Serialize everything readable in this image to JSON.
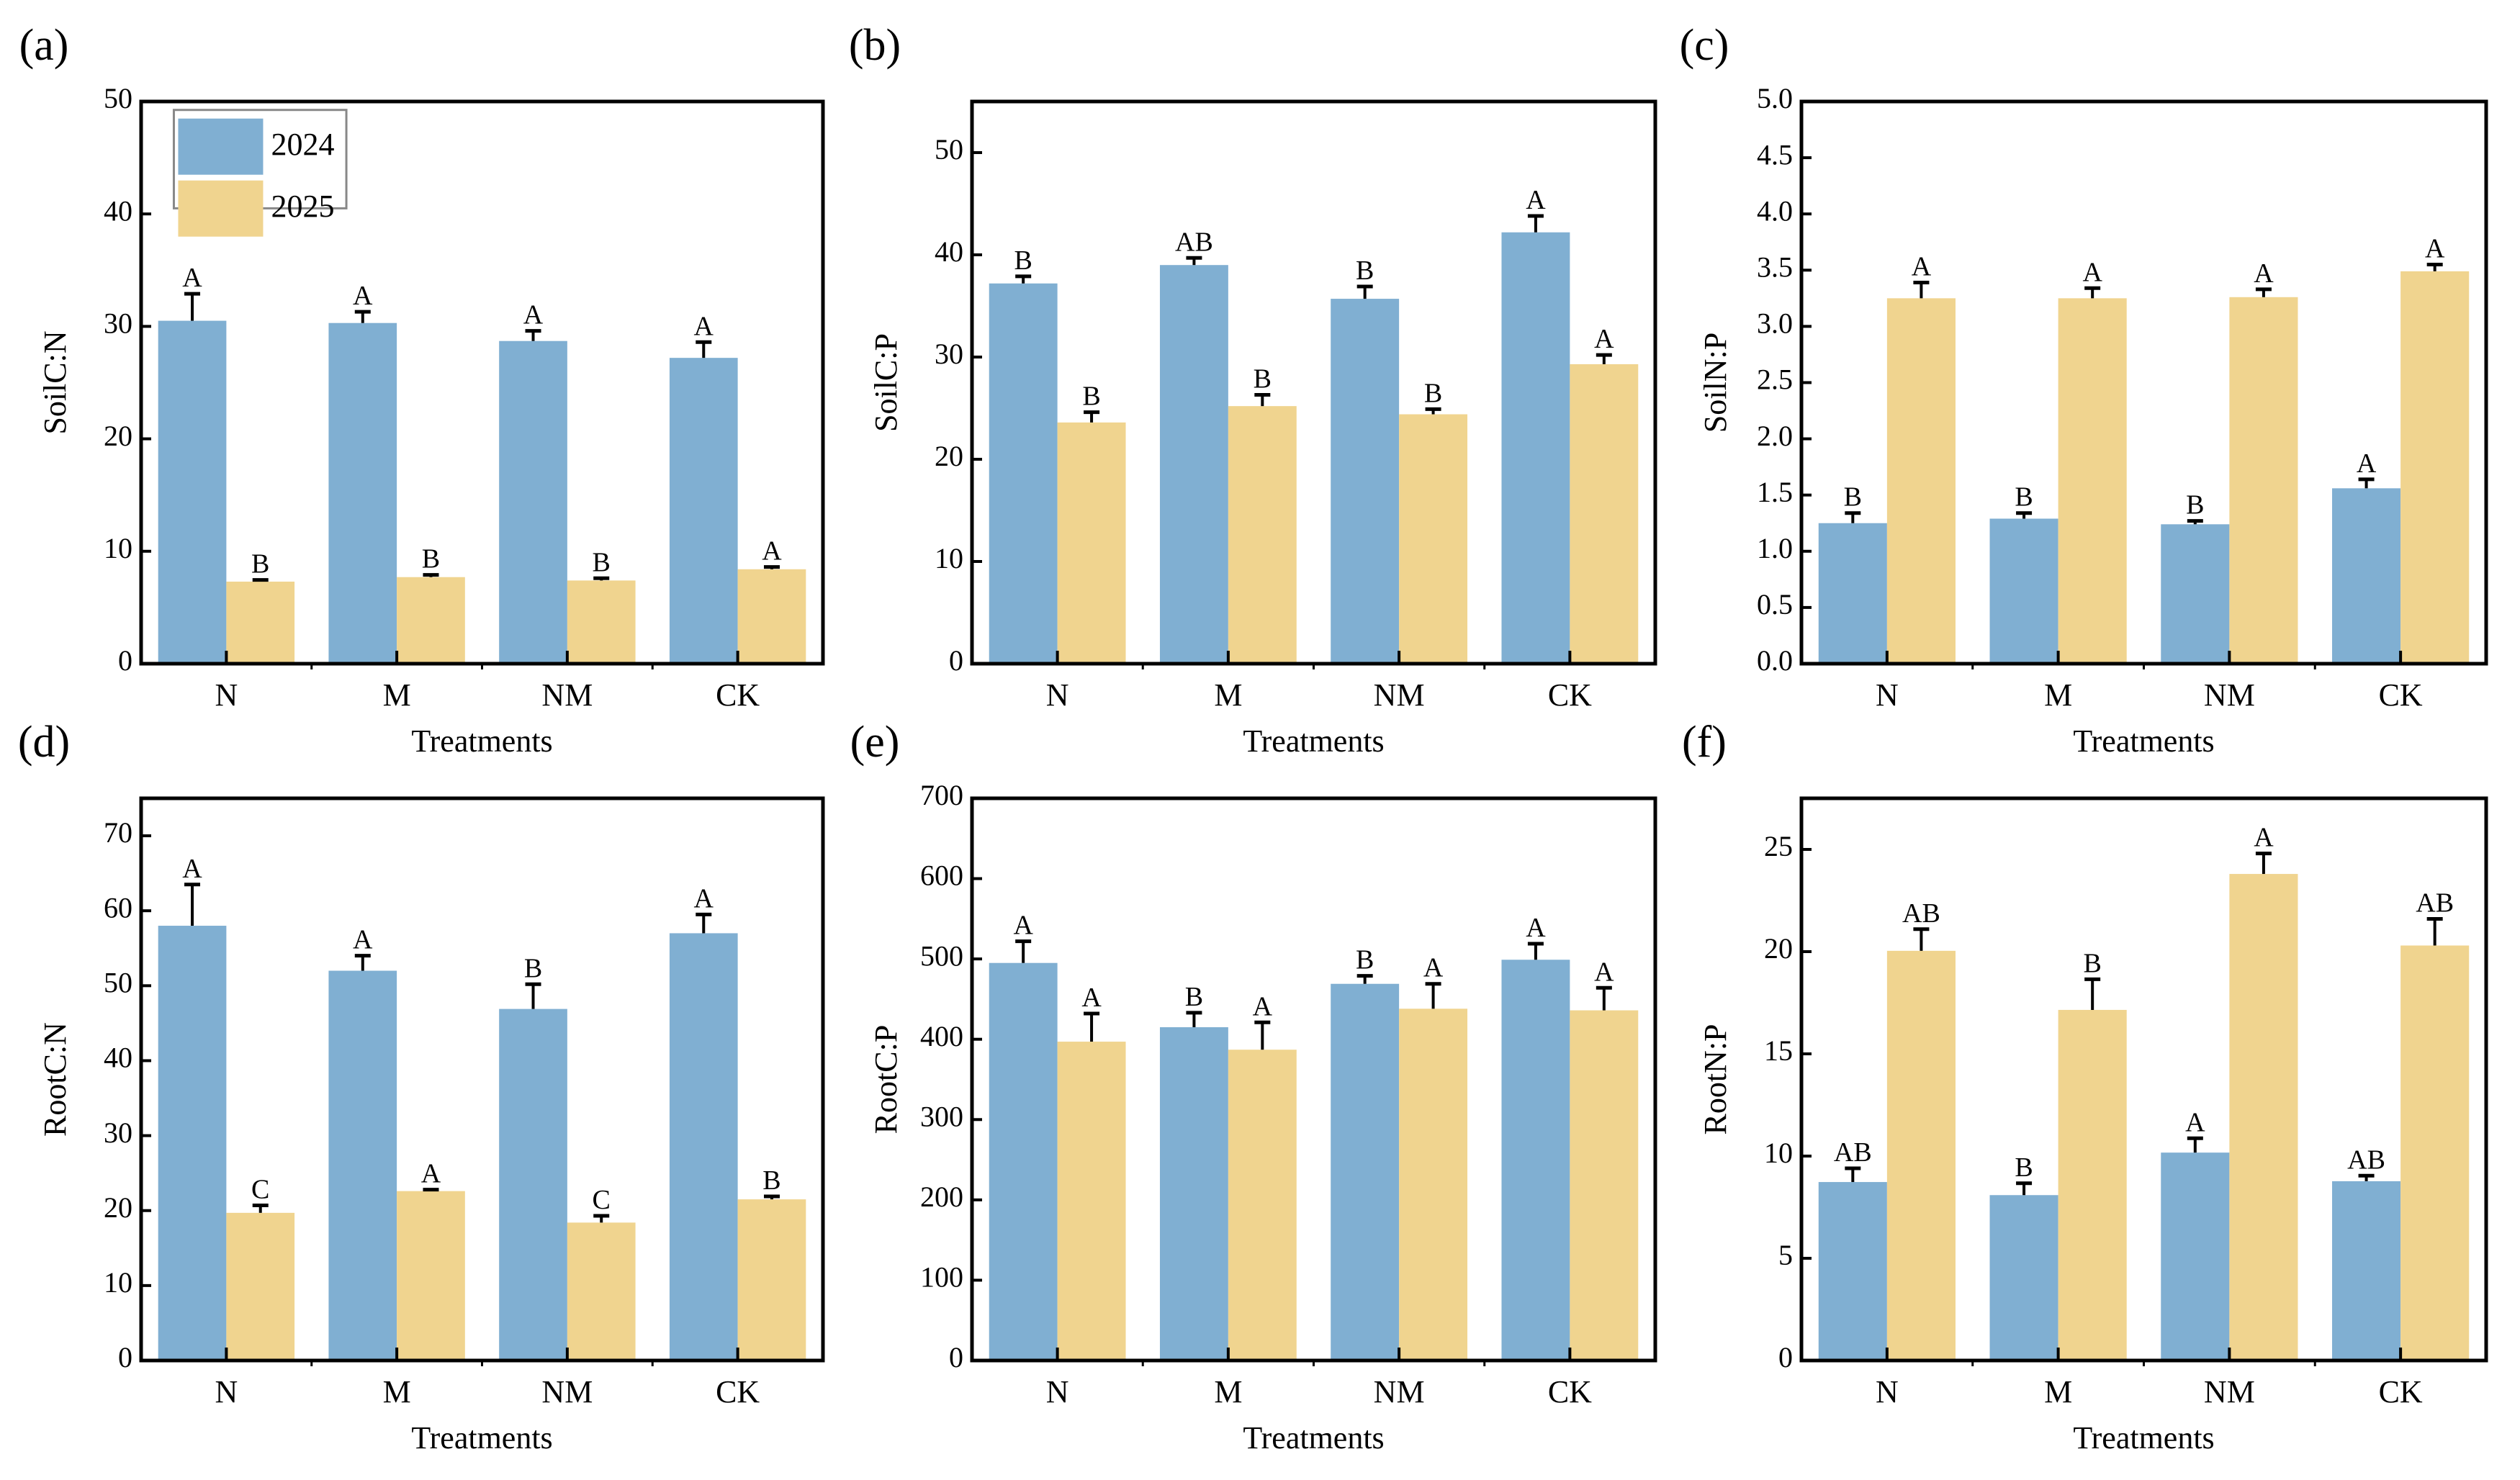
{
  "colors": {
    "2024": "#80AFD2",
    "2025": "#F0D48F"
  },
  "legend": [
    "2024",
    "2025"
  ],
  "chart_data": [
    {
      "panel": "(a)",
      "type": "bar",
      "ylabel": "SoilC:N",
      "xlabel": "Treatments",
      "categories": [
        "N",
        "M",
        "NM",
        "CK"
      ],
      "ylim": [
        0,
        50
      ],
      "yticks": [
        "0",
        "10",
        "20",
        "30",
        "40",
        "50"
      ],
      "legend_position": "top-left",
      "series": [
        {
          "name": "2024",
          "values": [
            30.5,
            30.3,
            28.7,
            27.2
          ],
          "errors": [
            2.4,
            1.0,
            0.9,
            1.4
          ],
          "letters": [
            "A",
            "A",
            "A",
            "A"
          ]
        },
        {
          "name": "2025",
          "values": [
            7.3,
            7.7,
            7.4,
            8.4
          ],
          "errors": [
            0.15,
            0.2,
            0.2,
            0.2
          ],
          "letters": [
            "B",
            "B",
            "B",
            "A"
          ]
        }
      ]
    },
    {
      "panel": "(b)",
      "type": "bar",
      "ylabel": "SoilC:P",
      "xlabel": "Treatments",
      "categories": [
        "N",
        "M",
        "NM",
        "CK"
      ],
      "ylim": [
        0,
        55
      ],
      "yticks": [
        "0",
        "10",
        "20",
        "30",
        "40",
        "50"
      ],
      "series": [
        {
          "name": "2024",
          "values": [
            37.2,
            39.0,
            35.7,
            42.2
          ],
          "errors": [
            0.7,
            0.7,
            1.2,
            1.6
          ],
          "letters": [
            "B",
            "AB",
            "B",
            "A"
          ]
        },
        {
          "name": "2025",
          "values": [
            23.6,
            25.2,
            24.4,
            29.3
          ],
          "errors": [
            1.0,
            1.1,
            0.5,
            0.9
          ],
          "letters": [
            "B",
            "B",
            "B",
            "A"
          ]
        }
      ]
    },
    {
      "panel": "(c)",
      "type": "bar",
      "ylabel": "SoilN:P",
      "xlabel": "Treatments",
      "categories": [
        "N",
        "M",
        "NM",
        "CK"
      ],
      "ylim": [
        0,
        5
      ],
      "yticks": [
        "0.0",
        "0.5",
        "1.0",
        "1.5",
        "2.0",
        "2.5",
        "3.0",
        "3.5",
        "4.0",
        "4.5",
        "5.0"
      ],
      "series": [
        {
          "name": "2024",
          "values": [
            1.25,
            1.29,
            1.24,
            1.56
          ],
          "errors": [
            0.09,
            0.05,
            0.03,
            0.08
          ],
          "letters": [
            "B",
            "B",
            "B",
            "A"
          ]
        },
        {
          "name": "2025",
          "values": [
            3.25,
            3.25,
            3.26,
            3.49
          ],
          "errors": [
            0.14,
            0.09,
            0.07,
            0.06
          ],
          "letters": [
            "A",
            "A",
            "A",
            "A"
          ]
        }
      ]
    },
    {
      "panel": "(d)",
      "type": "bar",
      "ylabel": "RootC:N",
      "xlabel": "Treatments",
      "categories": [
        "N",
        "M",
        "NM",
        "CK"
      ],
      "ylim": [
        0,
        75
      ],
      "yticks": [
        "0",
        "10",
        "20",
        "30",
        "40",
        "50",
        "60",
        "70"
      ],
      "series": [
        {
          "name": "2024",
          "values": [
            58.0,
            52.0,
            46.9,
            57.0
          ],
          "errors": [
            5.5,
            2.0,
            3.3,
            2.5
          ],
          "letters": [
            "A",
            "A",
            "B",
            "A"
          ]
        },
        {
          "name": "2025",
          "values": [
            19.7,
            22.6,
            18.4,
            21.5
          ],
          "errors": [
            1.0,
            0.2,
            0.9,
            0.4
          ],
          "letters": [
            "C",
            "A",
            "C",
            "B"
          ]
        }
      ]
    },
    {
      "panel": "(e)",
      "type": "bar",
      "ylabel": "RootC:P",
      "xlabel": "Treatments",
      "categories": [
        "N",
        "M",
        "NM",
        "CK"
      ],
      "ylim": [
        0,
        700
      ],
      "yticks": [
        "0",
        "100",
        "200",
        "300",
        "400",
        "500",
        "600",
        "700"
      ],
      "series": [
        {
          "name": "2024",
          "values": [
            495,
            415,
            469,
            499
          ],
          "errors": [
            27,
            18,
            10,
            20
          ],
          "letters": [
            "A",
            "B",
            "B",
            "A"
          ]
        },
        {
          "name": "2025",
          "values": [
            397,
            387,
            438,
            436
          ],
          "errors": [
            35,
            34,
            31,
            28
          ],
          "letters": [
            "A",
            "A",
            "A",
            "A"
          ]
        }
      ]
    },
    {
      "panel": "(f)",
      "type": "bar",
      "ylabel": "RootN:P",
      "xlabel": "Treatments",
      "categories": [
        "N",
        "M",
        "NM",
        "CK"
      ],
      "ylim": [
        0,
        27.5
      ],
      "yticks": [
        "0",
        "5",
        "10",
        "15",
        "20",
        "25"
      ],
      "series": [
        {
          "name": "2024",
          "values": [
            8.73,
            8.09,
            10.17,
            8.77
          ],
          "errors": [
            0.67,
            0.58,
            0.7,
            0.27
          ],
          "letters": [
            "AB",
            "B",
            "A",
            "AB"
          ]
        },
        {
          "name": "2025",
          "values": [
            20.04,
            17.15,
            23.8,
            20.3
          ],
          "errors": [
            1.06,
            1.5,
            1.0,
            1.3
          ],
          "letters": [
            "AB",
            "B",
            "A",
            "AB"
          ]
        }
      ]
    }
  ]
}
